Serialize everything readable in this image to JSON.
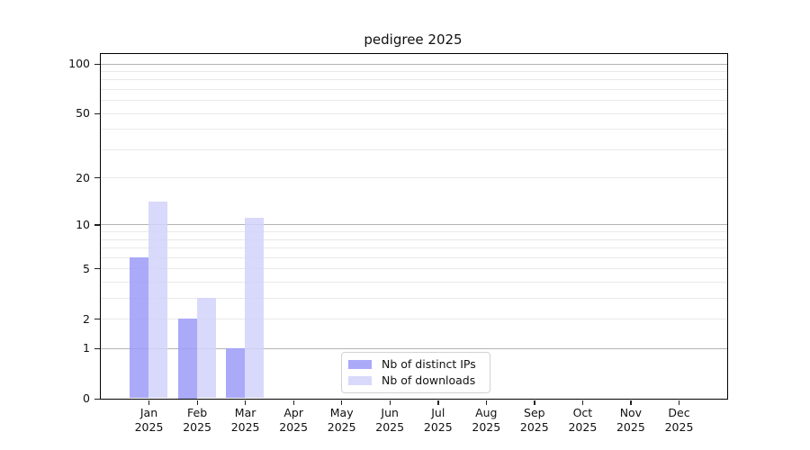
{
  "title": "pedigree 2025",
  "chart_data": {
    "type": "bar",
    "title": "pedigree 2025",
    "x_categories": [
      "Jan",
      "Feb",
      "Mar",
      "Apr",
      "May",
      "Jun",
      "Jul",
      "Aug",
      "Sep",
      "Oct",
      "Nov",
      "Dec"
    ],
    "x_year": "2025",
    "series": [
      {
        "name": "Nb of distinct IPs",
        "color": "rgba(155,155,248,0.85)",
        "values": [
          6,
          2,
          1,
          0,
          0,
          0,
          0,
          0,
          0,
          0,
          0,
          0
        ]
      },
      {
        "name": "Nb of downloads",
        "color": "rgba(210,210,250,0.85)",
        "values": [
          14,
          3,
          11,
          0,
          0,
          0,
          0,
          0,
          0,
          0,
          0,
          0
        ]
      }
    ],
    "yaxis": {
      "scale": "log1p",
      "tick_labels": [
        "0",
        "1",
        "2",
        "5",
        "10",
        "20",
        "50",
        "100"
      ],
      "tick_values": [
        0,
        1,
        2,
        5,
        10,
        20,
        50,
        100
      ],
      "ylim": [
        0,
        115
      ],
      "grid_major_values": [
        1,
        10,
        100
      ],
      "grid_minor_values": [
        2,
        3,
        4,
        5,
        6,
        7,
        8,
        9,
        20,
        30,
        40,
        50,
        60,
        70,
        80,
        90
      ]
    },
    "legend": {
      "position": "lower center",
      "entries": [
        "Nb of distinct IPs",
        "Nb of downloads"
      ]
    },
    "colors": {
      "grid_major": "#b3b3b3",
      "grid_minor": "#e9e9e9",
      "spine": "#000000",
      "text": "#111111",
      "background": "#ffffff"
    }
  }
}
